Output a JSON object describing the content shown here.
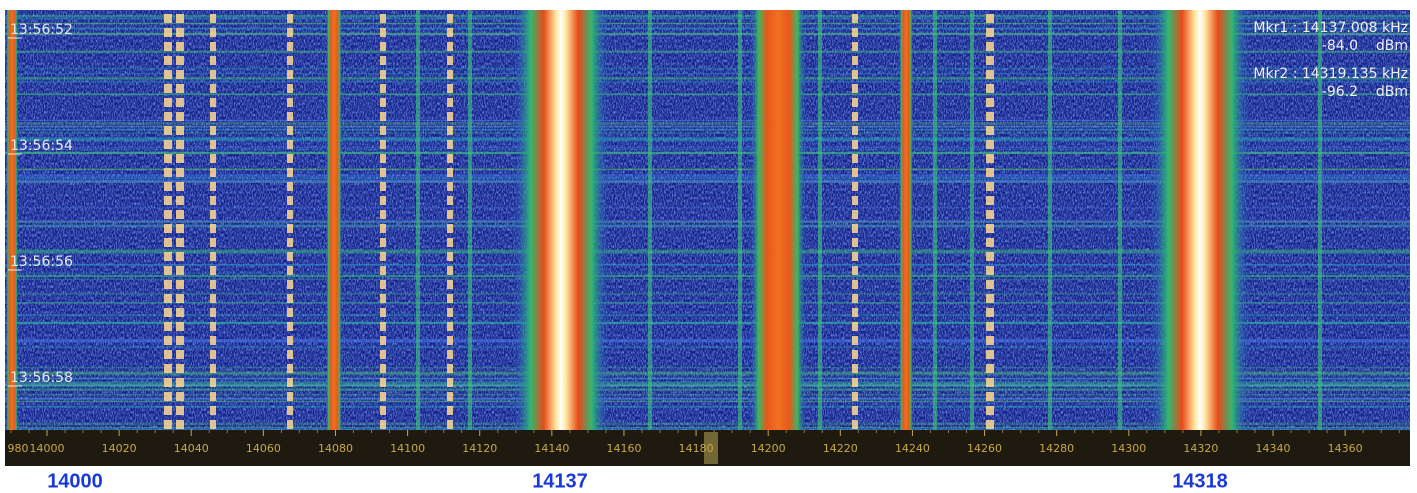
{
  "time_labels": [
    "13:56:52",
    "13:56:54",
    "13:56:56",
    "13:56:58"
  ],
  "markers": [
    {
      "label": "Mkr1 : 14137.008 kHz",
      "level": "-84.0    dBm"
    },
    {
      "label": "Mkr2 : 14319.135 kHz",
      "level": "-96.2    dBm"
    }
  ],
  "freq_axis": {
    "ticks": [
      {
        "value": 13980,
        "label": "980"
      },
      14000,
      14020,
      14040,
      14060,
      14080,
      14100,
      14120,
      14140,
      14160,
      14180,
      14200,
      14220,
      14240,
      14260,
      14280,
      14300,
      14320,
      14340,
      14360
    ]
  },
  "bottom_labels": [
    "14000",
    "14137",
    "14318"
  ]
}
